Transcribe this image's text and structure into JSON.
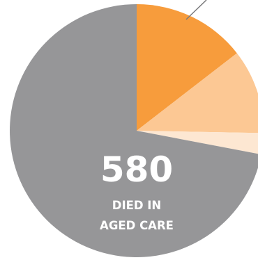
{
  "chart_data": {
    "type": "pie",
    "start_angle_deg": 0,
    "direction": "clockwise",
    "slices": [
      {
        "value": 14.5,
        "color": "#f79c3c"
      },
      {
        "value": 10.8,
        "color": "#fcc894"
      },
      {
        "value": 2.7,
        "color": "#fde7d2"
      },
      {
        "value": 72.0,
        "color": "#969698"
      }
    ],
    "center_label": {
      "value": "580",
      "lines": [
        "DIED IN",
        "AGED CARE"
      ]
    },
    "leader_line": {
      "color": "#7a7a7c"
    }
  }
}
